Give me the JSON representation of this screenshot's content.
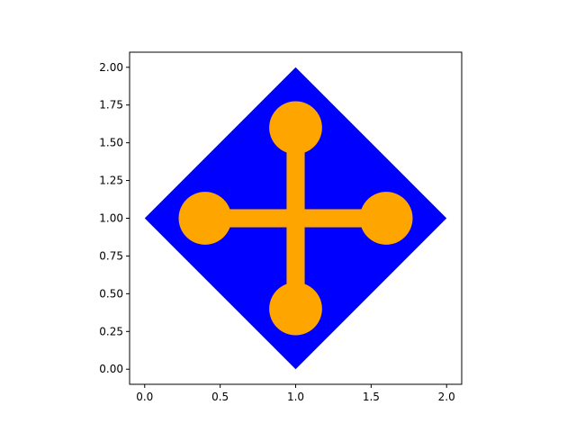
{
  "chart_data": {
    "type": "shape",
    "title": "",
    "xlabel": "",
    "ylabel": "",
    "xlim": [
      -0.1,
      2.1
    ],
    "ylim": [
      -0.1,
      2.1
    ],
    "xticks": [
      0.0,
      0.5,
      1.0,
      1.5,
      2.0
    ],
    "xtick_labels": [
      "0.0",
      "0.5",
      "1.0",
      "1.5",
      "2.0"
    ],
    "yticks": [
      0.0,
      0.25,
      0.5,
      0.75,
      1.0,
      1.25,
      1.5,
      1.75,
      2.0
    ],
    "ytick_labels": [
      "0.00",
      "0.25",
      "0.50",
      "0.75",
      "1.00",
      "1.25",
      "1.50",
      "1.75",
      "2.00"
    ],
    "diamond": {
      "color": "#0000ff",
      "vertices": [
        [
          0.0,
          1.0
        ],
        [
          1.0,
          2.0
        ],
        [
          2.0,
          1.0
        ],
        [
          1.0,
          0.0
        ]
      ]
    },
    "cross": {
      "color": "#ffa500",
      "horizontal_bar": {
        "x": [
          0.4,
          1.6
        ],
        "y": 1.0,
        "half_thickness": 0.06
      },
      "vertical_bar": {
        "x": 1.0,
        "y": [
          0.4,
          1.6
        ],
        "half_thickness": 0.06
      },
      "end_circle_radius": 0.175,
      "end_circles": [
        [
          0.4,
          1.0
        ],
        [
          1.6,
          1.0
        ],
        [
          1.0,
          1.6
        ],
        [
          1.0,
          0.4
        ]
      ]
    },
    "grid": false,
    "legend": "none"
  }
}
